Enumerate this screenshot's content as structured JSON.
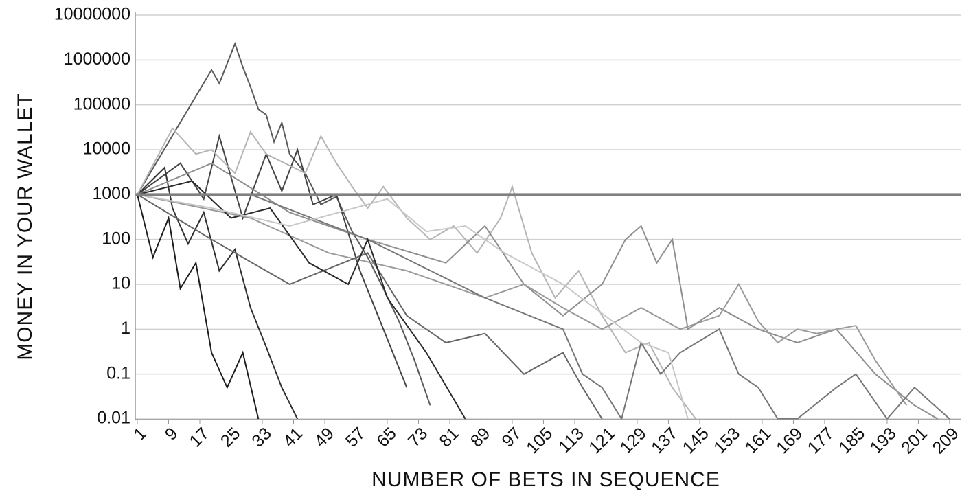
{
  "chart_data": {
    "type": "line",
    "y_label": "MONEY IN YOUR WALLET",
    "x_label": "NUMBER OF BETS IN SEQUENCE",
    "log_y": true,
    "grid": true,
    "xlim": [
      1,
      212
    ],
    "ylim": [
      0.01,
      10000000
    ],
    "xticks": [
      1,
      9,
      17,
      25,
      33,
      41,
      49,
      57,
      65,
      73,
      81,
      89,
      97,
      105,
      113,
      121,
      129,
      137,
      145,
      153,
      161,
      169,
      177,
      185,
      193,
      201,
      209
    ],
    "yticks": [
      0.01,
      0.1,
      1,
      10,
      100,
      1000,
      10000,
      100000,
      1000000,
      10000000
    ],
    "reference_line": 1000,
    "reference_color": "#808080",
    "series": [
      {
        "color": "#5a5a5a",
        "x": [
          1,
          20,
          22,
          26,
          28,
          30,
          32,
          34,
          36,
          38,
          40,
          44,
          48,
          52,
          56,
          60,
          64,
          68,
          72,
          76
        ],
        "values": [
          1000,
          600000,
          300000,
          2300000,
          700000,
          250000,
          80000,
          60000,
          15000,
          40000,
          8000,
          3000,
          600,
          900,
          150,
          40,
          8,
          1.5,
          0.2,
          0.02
        ]
      },
      {
        "color": "#1e1e1e",
        "x": [
          1,
          5,
          9,
          12,
          16,
          20,
          24,
          28,
          32
        ],
        "values": [
          1000,
          40,
          300,
          8,
          30,
          0.3,
          0.05,
          0.3,
          0.01
        ]
      },
      {
        "color": "#303030",
        "x": [
          1,
          8,
          10,
          14,
          18,
          22,
          26,
          30,
          34,
          38,
          42
        ],
        "values": [
          1000,
          4000,
          500,
          80,
          400,
          20,
          60,
          3,
          0.4,
          0.05,
          0.01
        ]
      },
      {
        "color": "#444444",
        "x": [
          1,
          12,
          18,
          22,
          28,
          34,
          38,
          42,
          46,
          52,
          58,
          64,
          70
        ],
        "values": [
          1000,
          5000,
          800,
          20000,
          300,
          8000,
          1200,
          10000,
          600,
          1000,
          20,
          1,
          0.05
        ]
      },
      {
        "color": "#b5b5b5",
        "x": [
          1,
          10,
          16,
          20,
          26,
          30,
          34,
          44,
          48,
          52,
          56,
          60,
          64,
          70,
          76,
          82,
          88,
          94,
          97,
          102,
          108,
          114,
          120,
          126,
          132,
          138,
          144
        ],
        "values": [
          1000,
          30000,
          8000,
          10000,
          3000,
          25000,
          8000,
          3000,
          20000,
          5000,
          1500,
          500,
          1500,
          300,
          100,
          200,
          50,
          300,
          1500,
          50,
          5,
          20,
          2,
          0.3,
          0.5,
          0.05,
          0.01
        ]
      },
      {
        "color": "#8f8f8f",
        "x": [
          1,
          20,
          40,
          60,
          80,
          90,
          100,
          110,
          120,
          126,
          130,
          134,
          138,
          142,
          150,
          160,
          170,
          180,
          190,
          200,
          206
        ],
        "values": [
          1000,
          5000,
          400,
          100,
          30,
          200,
          10,
          2,
          10,
          100,
          200,
          30,
          100,
          1,
          3,
          1,
          0.5,
          1,
          0.1,
          0.02,
          0.01
        ]
      },
      {
        "color": "#9a9a9a",
        "x": [
          1,
          30,
          50,
          70,
          90,
          100,
          110,
          120,
          130,
          140,
          150,
          155,
          160,
          165,
          170,
          175,
          180,
          185,
          190,
          198
        ],
        "values": [
          1000,
          300,
          50,
          20,
          5,
          10,
          3,
          1,
          3,
          1,
          2,
          10,
          1.5,
          0.5,
          1,
          0.8,
          1,
          1.2,
          0.2,
          0.02
        ]
      },
      {
        "color": "#777777",
        "x": [
          1,
          30,
          60,
          90,
          110,
          115,
          120,
          125,
          130,
          135,
          140,
          150,
          155,
          160,
          165,
          170,
          180,
          185,
          193,
          200,
          209
        ],
        "values": [
          1000,
          1000,
          100,
          5,
          1,
          0.1,
          0.05,
          0.01,
          0.5,
          0.1,
          0.3,
          1,
          0.1,
          0.05,
          0.01,
          0.01,
          0.05,
          0.1,
          0.01,
          0.05,
          0.01
        ]
      },
      {
        "color": "#666666",
        "x": [
          1,
          20,
          40,
          60,
          70,
          80,
          90,
          100,
          110,
          115,
          120
        ],
        "values": [
          1000,
          100,
          10,
          50,
          2,
          0.5,
          0.8,
          0.1,
          0.3,
          0.05,
          0.01
        ]
      },
      {
        "color": "#2a2a2a",
        "x": [
          1,
          15,
          25,
          35,
          45,
          55,
          60,
          65,
          75,
          85
        ],
        "values": [
          1000,
          2000,
          300,
          500,
          30,
          10,
          100,
          5,
          0.3,
          0.01
        ]
      },
      {
        "color": "#c8c8c8",
        "x": [
          1,
          20,
          40,
          65,
          75,
          85,
          95,
          110,
          130,
          137,
          142
        ],
        "values": [
          1000,
          500,
          200,
          800,
          150,
          200,
          50,
          10,
          0.5,
          0.3,
          0.01
        ]
      }
    ]
  }
}
